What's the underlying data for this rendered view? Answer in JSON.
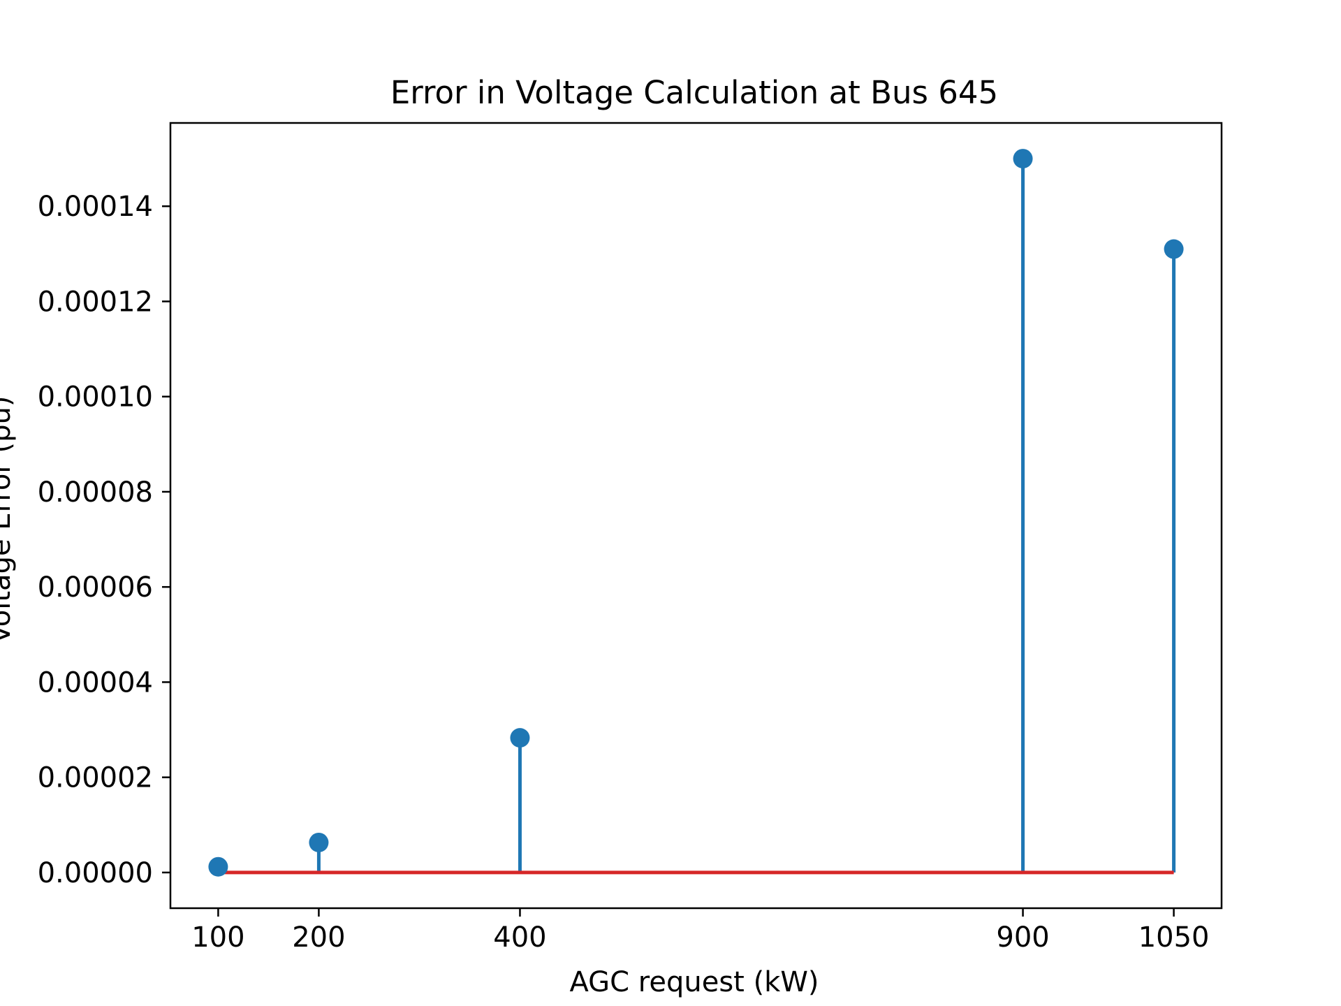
{
  "chart_data": {
    "type": "stem",
    "title": "Error in Voltage Calculation at Bus 645",
    "xlabel": "AGC request (kW)",
    "ylabel": "Voltage Error (pu)",
    "x": [
      100,
      200,
      400,
      900,
      1050
    ],
    "y": [
      1.2e-06,
      6.3e-06,
      2.83e-05,
      0.00015,
      0.000131
    ],
    "xticks": [
      "100",
      "200",
      "400",
      "900",
      "1050"
    ],
    "yticks": [
      "0.00000",
      "0.00002",
      "0.00004",
      "0.00006",
      "0.00008",
      "0.00010",
      "0.00012",
      "0.00014"
    ],
    "xlim": [
      52.5,
      1097.5
    ],
    "ylim": [
      -7.5e-06,
      0.0001575
    ],
    "grid": false,
    "colors": {
      "stem": "#1f77b4",
      "baseline": "#d62728",
      "axes": "#000000"
    }
  }
}
